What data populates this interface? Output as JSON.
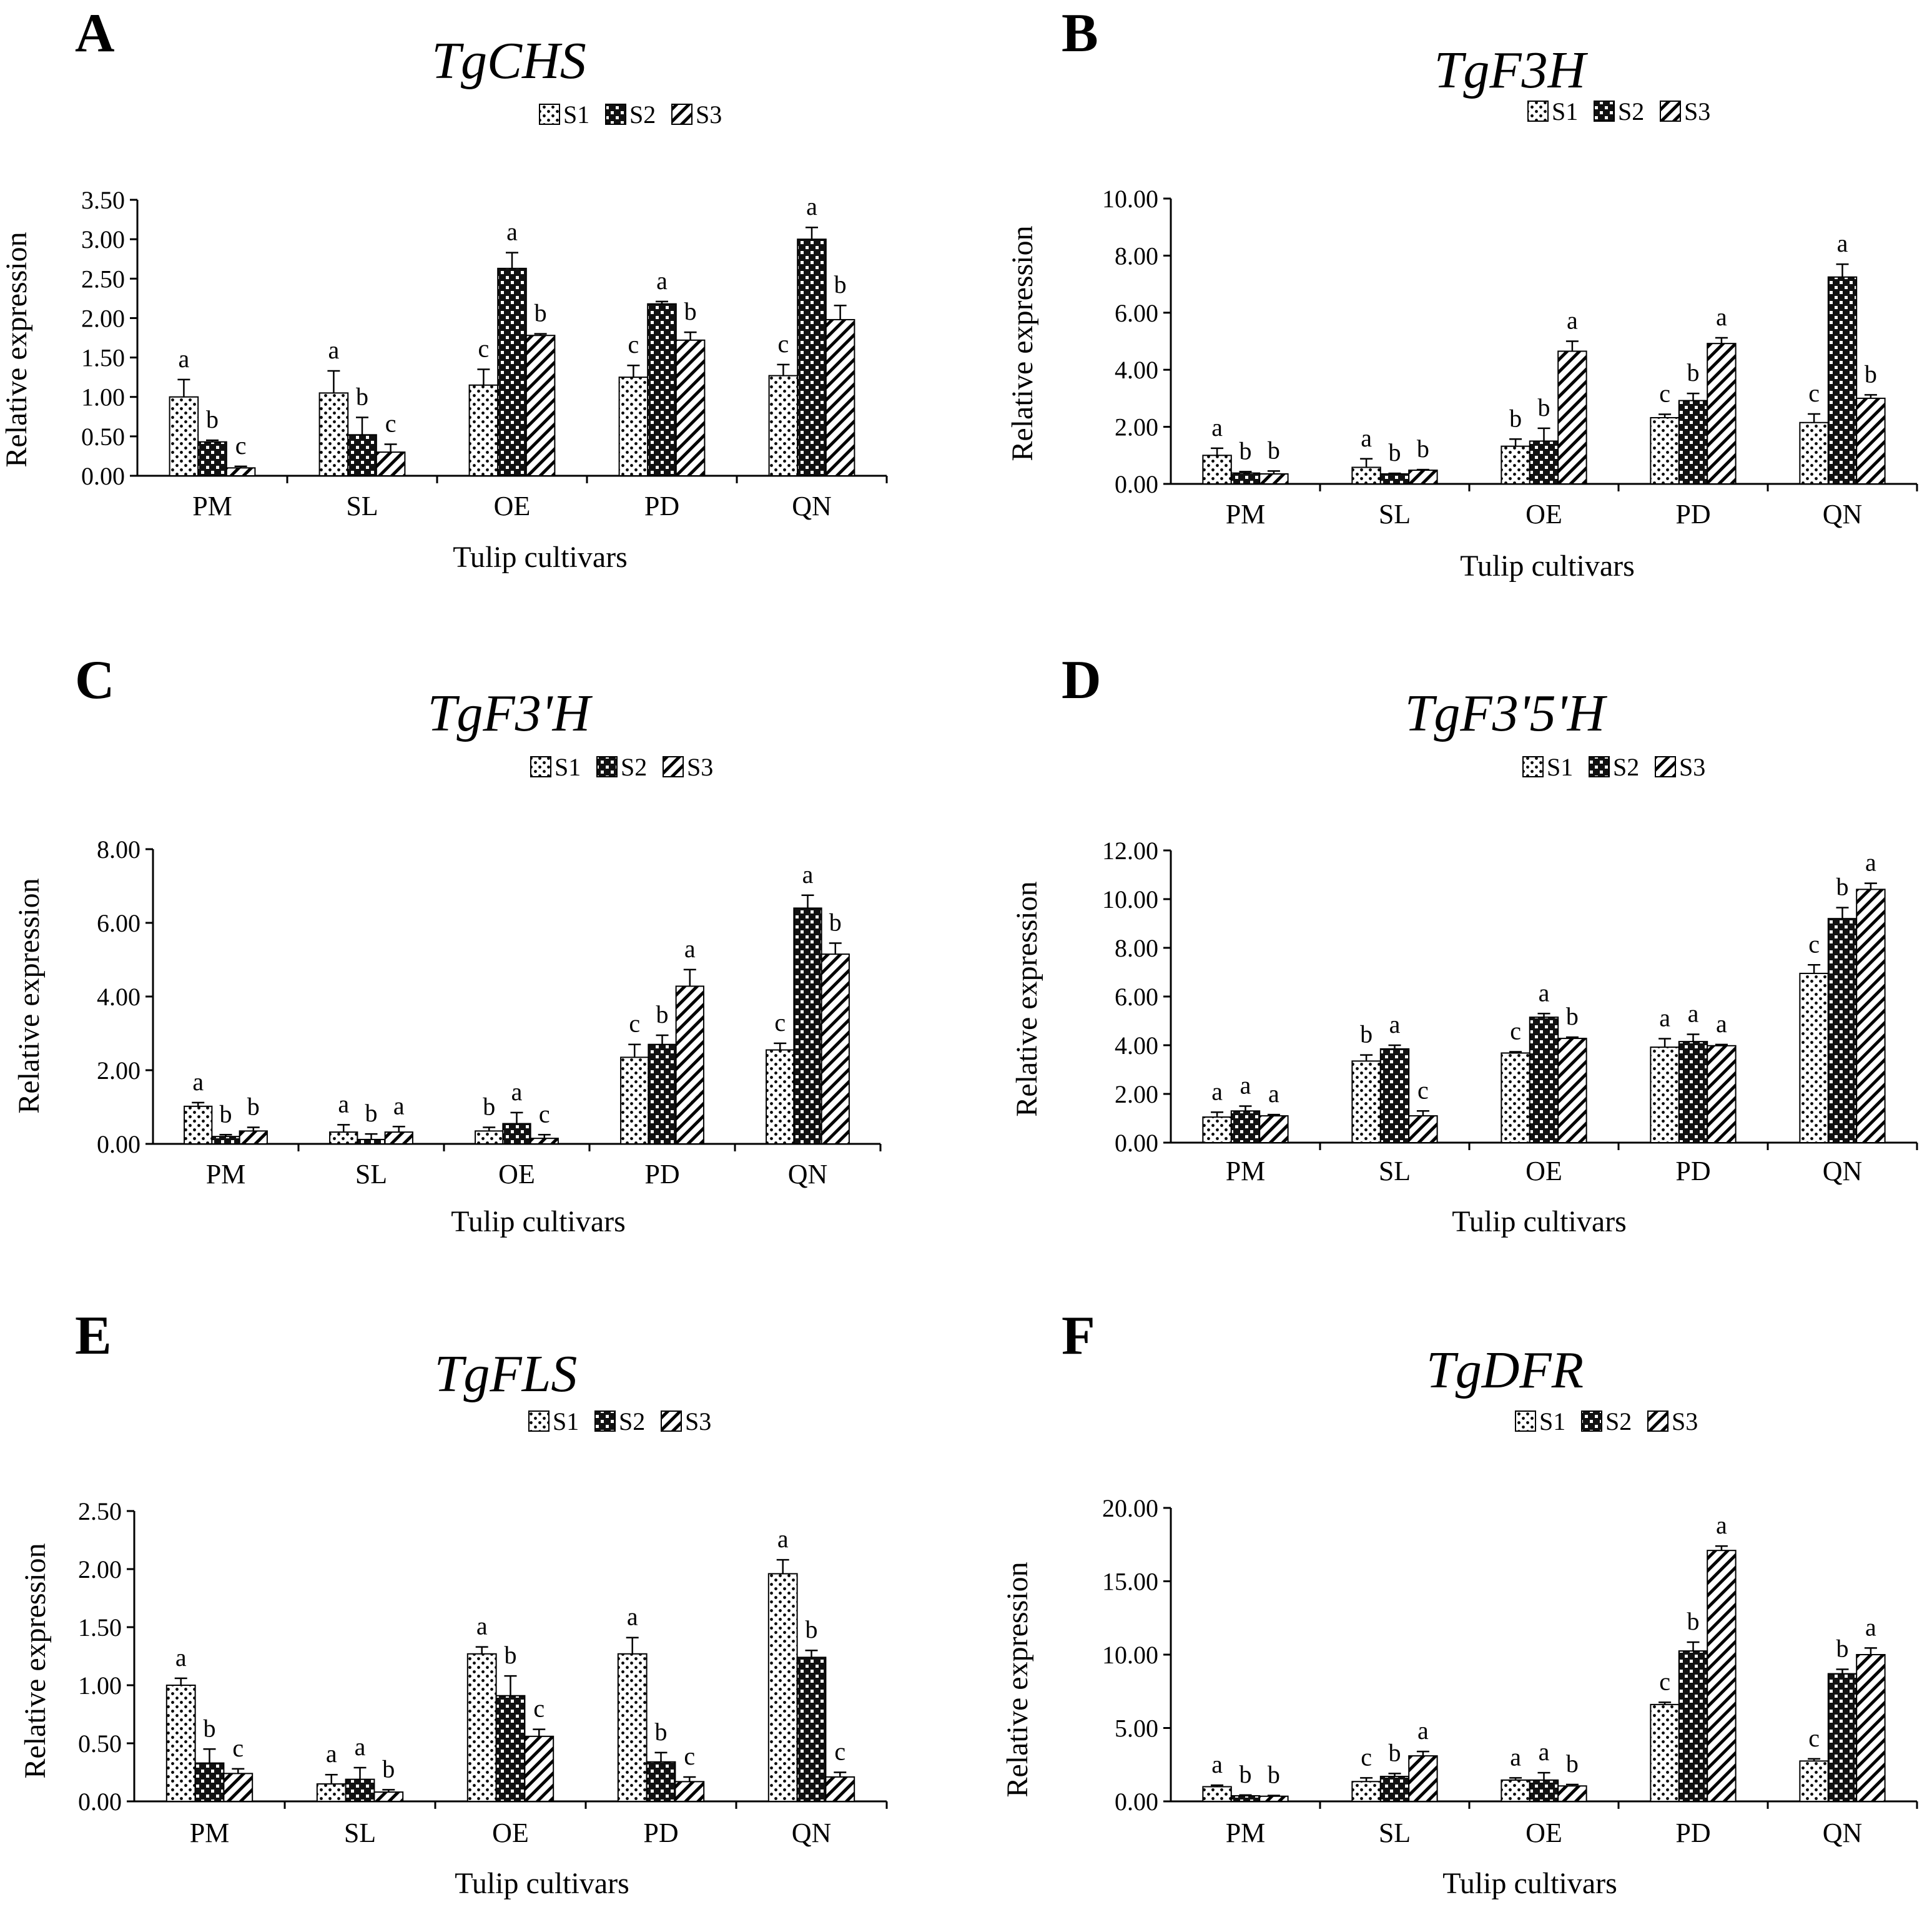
{
  "figure_layout": "2 columns x 3 rows of grouped bar charts",
  "chart_data": [
    {
      "panel": "A",
      "type": "bar",
      "title": "TgCHS",
      "xlabel": "Tulip cultivars",
      "ylabel": "Relative expression",
      "categories": [
        "PM",
        "SL",
        "OE",
        "PD",
        "QN"
      ],
      "ylim": [
        0,
        3.5
      ],
      "yticks": [
        "0.00",
        "0.50",
        "1.00",
        "1.50",
        "2.00",
        "2.50",
        "3.00",
        "3.50"
      ],
      "series": [
        {
          "name": "S1",
          "values": [
            1.0,
            1.05,
            1.15,
            1.25,
            1.27
          ],
          "errors": [
            0.22,
            0.28,
            0.2,
            0.15,
            0.14
          ],
          "labels": [
            "a",
            "a",
            "c",
            "c",
            "c"
          ]
        },
        {
          "name": "S2",
          "values": [
            0.43,
            0.52,
            2.63,
            2.18,
            3.0
          ],
          "errors": [
            0.02,
            0.22,
            0.2,
            0.03,
            0.15
          ],
          "labels": [
            "b",
            "b",
            "a",
            "a",
            "a"
          ]
        },
        {
          "name": "S3",
          "values": [
            0.1,
            0.3,
            1.78,
            1.72,
            1.98
          ],
          "errors": [
            0.02,
            0.1,
            0.02,
            0.1,
            0.18
          ],
          "labels": [
            "c",
            "c",
            "b",
            "b",
            "b"
          ]
        }
      ],
      "legend": [
        "S1",
        "S2",
        "S3"
      ],
      "legend_position": "top-right"
    },
    {
      "panel": "B",
      "type": "bar",
      "title": "TgF3H",
      "xlabel": "Tulip cultivars",
      "ylabel": "Relative expression",
      "categories": [
        "PM",
        "SL",
        "OE",
        "PD",
        "QN"
      ],
      "ylim": [
        0,
        10
      ],
      "yticks": [
        "0.00",
        "2.00",
        "4.00",
        "6.00",
        "8.00",
        "10.00"
      ],
      "series": [
        {
          "name": "S1",
          "values": [
            1.0,
            0.58,
            1.32,
            2.32,
            2.15
          ],
          "errors": [
            0.25,
            0.3,
            0.25,
            0.12,
            0.3
          ],
          "labels": [
            "a",
            "a",
            "b",
            "c",
            "c"
          ]
        },
        {
          "name": "S2",
          "values": [
            0.38,
            0.35,
            1.5,
            2.92,
            7.25
          ],
          "errors": [
            0.05,
            0.02,
            0.45,
            0.25,
            0.45
          ],
          "labels": [
            "b",
            "b",
            "b",
            "b",
            "a"
          ]
        },
        {
          "name": "S3",
          "values": [
            0.35,
            0.48,
            4.65,
            4.92,
            3.0
          ],
          "errors": [
            0.1,
            0.02,
            0.35,
            0.2,
            0.12
          ],
          "labels": [
            "b",
            "b",
            "a",
            "a",
            "b"
          ]
        }
      ],
      "legend": [
        "S1",
        "S2",
        "S3"
      ],
      "legend_position": "top-right"
    },
    {
      "panel": "C",
      "type": "bar",
      "title": "TgF3'H",
      "xlabel": "Tulip cultivars",
      "ylabel": "Relative expression",
      "categories": [
        "PM",
        "SL",
        "OE",
        "PD",
        "QN"
      ],
      "ylim": [
        0,
        8
      ],
      "yticks": [
        "0.00",
        "2.00",
        "4.00",
        "6.00",
        "8.00"
      ],
      "series": [
        {
          "name": "S1",
          "values": [
            1.02,
            0.32,
            0.35,
            2.35,
            2.55
          ],
          "errors": [
            0.1,
            0.2,
            0.1,
            0.35,
            0.18
          ],
          "labels": [
            "a",
            "a",
            "b",
            "c",
            "c"
          ]
        },
        {
          "name": "S2",
          "values": [
            0.2,
            0.12,
            0.55,
            2.7,
            6.4
          ],
          "errors": [
            0.05,
            0.15,
            0.3,
            0.25,
            0.35
          ],
          "labels": [
            "b",
            "b",
            "a",
            "b",
            "a"
          ]
        },
        {
          "name": "S3",
          "values": [
            0.35,
            0.32,
            0.15,
            4.28,
            5.15
          ],
          "errors": [
            0.1,
            0.15,
            0.1,
            0.45,
            0.3
          ],
          "labels": [
            "b",
            "a",
            "c",
            "a",
            "b"
          ]
        }
      ],
      "legend": [
        "S1",
        "S2",
        "S3"
      ],
      "legend_position": "top-right"
    },
    {
      "panel": "D",
      "type": "bar",
      "title": "TgF3'5'H",
      "xlabel": "Tulip cultivars",
      "ylabel": "Relative expression",
      "categories": [
        "PM",
        "SL",
        "OE",
        "PD",
        "QN"
      ],
      "ylim": [
        0,
        12
      ],
      "yticks": [
        "0.00",
        "2.00",
        "4.00",
        "6.00",
        "8.00",
        "10.00",
        "12.00"
      ],
      "series": [
        {
          "name": "S1",
          "values": [
            1.05,
            3.35,
            3.68,
            3.92,
            6.95
          ],
          "errors": [
            0.2,
            0.25,
            0.05,
            0.35,
            0.35
          ],
          "labels": [
            "a",
            "b",
            "c",
            "a",
            "c"
          ]
        },
        {
          "name": "S2",
          "values": [
            1.3,
            3.85,
            5.15,
            4.15,
            9.2
          ],
          "errors": [
            0.2,
            0.15,
            0.15,
            0.3,
            0.45
          ],
          "labels": [
            "a",
            "a",
            "a",
            "a",
            "b"
          ]
        },
        {
          "name": "S3",
          "values": [
            1.1,
            1.1,
            4.28,
            3.98,
            10.4
          ],
          "errors": [
            0.05,
            0.2,
            0.05,
            0.05,
            0.25
          ],
          "labels": [
            "a",
            "c",
            "b",
            "a",
            "a"
          ]
        }
      ],
      "legend": [
        "S1",
        "S2",
        "S3"
      ],
      "legend_position": "top-right"
    },
    {
      "panel": "E",
      "type": "bar",
      "title": "TgFLS",
      "xlabel": "Tulip cultivars",
      "ylabel": "Relative expression",
      "categories": [
        "PM",
        "SL",
        "OE",
        "PD",
        "QN"
      ],
      "ylim": [
        0,
        2.5
      ],
      "yticks": [
        "0.00",
        "0.50",
        "1.00",
        "1.50",
        "2.00",
        "2.50"
      ],
      "series": [
        {
          "name": "S1",
          "values": [
            1.0,
            0.15,
            1.27,
            1.27,
            1.96
          ],
          "errors": [
            0.06,
            0.08,
            0.06,
            0.14,
            0.12
          ],
          "labels": [
            "a",
            "a",
            "a",
            "a",
            "a"
          ]
        },
        {
          "name": "S2",
          "values": [
            0.33,
            0.19,
            0.91,
            0.34,
            1.24
          ],
          "errors": [
            0.12,
            0.1,
            0.17,
            0.08,
            0.06
          ],
          "labels": [
            "b",
            "a",
            "b",
            "b",
            "b"
          ]
        },
        {
          "name": "S3",
          "values": [
            0.24,
            0.08,
            0.56,
            0.17,
            0.21
          ],
          "errors": [
            0.04,
            0.02,
            0.06,
            0.04,
            0.04
          ],
          "labels": [
            "c",
            "b",
            "c",
            "c",
            "c"
          ]
        }
      ],
      "legend": [
        "S1",
        "S2",
        "S3"
      ],
      "legend_position": "top-right"
    },
    {
      "panel": "F",
      "type": "bar",
      "title": "TgDFR",
      "xlabel": "Tulip cultivars",
      "ylabel": "Relative expression",
      "categories": [
        "PM",
        "SL",
        "OE",
        "PD",
        "QN"
      ],
      "ylim": [
        0,
        20
      ],
      "yticks": [
        "0.00",
        "5.00",
        "10.00",
        "15.00",
        "20.00"
      ],
      "series": [
        {
          "name": "S1",
          "values": [
            1.0,
            1.35,
            1.45,
            6.6,
            2.75
          ],
          "errors": [
            0.1,
            0.25,
            0.15,
            0.15,
            0.15
          ],
          "labels": [
            "a",
            "c",
            "a",
            "c",
            "c"
          ]
        },
        {
          "name": "S2",
          "values": [
            0.38,
            1.7,
            1.45,
            10.25,
            8.7
          ],
          "errors": [
            0.05,
            0.2,
            0.5,
            0.6,
            0.3
          ],
          "labels": [
            "b",
            "b",
            "a",
            "b",
            "b"
          ]
        },
        {
          "name": "S3",
          "values": [
            0.35,
            3.1,
            1.05,
            17.1,
            10.0
          ],
          "errors": [
            0.05,
            0.3,
            0.1,
            0.3,
            0.45
          ],
          "labels": [
            "b",
            "a",
            "b",
            "a",
            "a"
          ]
        }
      ],
      "legend": [
        "S1",
        "S2",
        "S3"
      ],
      "legend_position": "top-right"
    }
  ]
}
